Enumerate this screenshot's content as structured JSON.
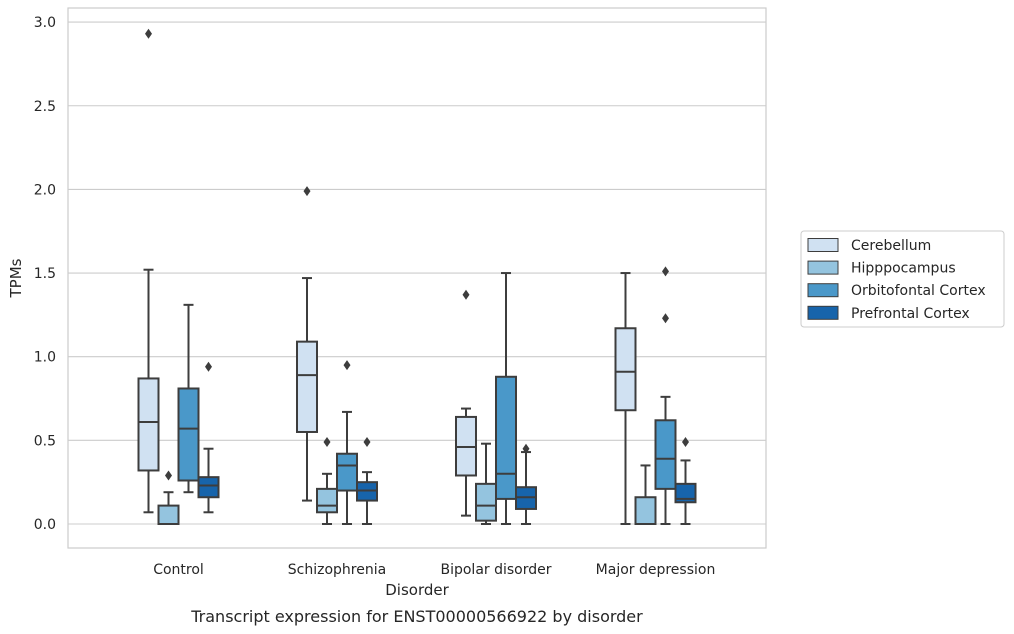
{
  "chart_data": {
    "type": "box",
    "caption": "Transcript expression for ENST00000566922 by disorder",
    "xlabel": "Disorder",
    "ylabel": "TPMs",
    "ylim": [
      -0.14,
      3.08
    ],
    "yticks": [
      0.0,
      0.5,
      1.0,
      1.5,
      2.0,
      2.5,
      3.0
    ],
    "ytick_labels": [
      "0.0",
      "0.5",
      "1.0",
      "1.5",
      "2.0",
      "2.5",
      "3.0"
    ],
    "grid": "horizontal",
    "legend_position": "right",
    "categories": [
      "Control",
      "Schizophrenia",
      "Bipolar disorder",
      "Major depression"
    ],
    "series": [
      {
        "name": "Cerebellum",
        "color": "#d0e1f2",
        "boxes": [
          {
            "min": 0.07,
            "q1": 0.32,
            "median": 0.61,
            "q3": 0.87,
            "max": 1.52,
            "outliers": [
              2.93
            ]
          },
          {
            "min": 0.14,
            "q1": 0.55,
            "median": 0.89,
            "q3": 1.09,
            "max": 1.47,
            "outliers": [
              1.99
            ]
          },
          {
            "min": 0.05,
            "q1": 0.29,
            "median": 0.46,
            "q3": 0.64,
            "max": 0.69,
            "outliers": [
              1.37
            ]
          },
          {
            "min": 0.0,
            "q1": 0.68,
            "median": 0.91,
            "q3": 1.17,
            "max": 1.5,
            "outliers": []
          }
        ]
      },
      {
        "name": "Hipppocampus",
        "color": "#94c4df",
        "boxes": [
          {
            "min": 0.0,
            "q1": 0.0,
            "median": 0.0,
            "q3": 0.11,
            "max": 0.19,
            "outliers": [
              0.29
            ]
          },
          {
            "min": 0.0,
            "q1": 0.07,
            "median": 0.11,
            "q3": 0.21,
            "max": 0.3,
            "outliers": [
              0.49
            ]
          },
          {
            "min": 0.0,
            "q1": 0.02,
            "median": 0.11,
            "q3": 0.24,
            "max": 0.48,
            "outliers": []
          },
          {
            "min": 0.0,
            "q1": 0.0,
            "median": 0.0,
            "q3": 0.16,
            "max": 0.35,
            "outliers": []
          }
        ]
      },
      {
        "name": "Orbitofontal Cortex",
        "color": "#4a98c9",
        "boxes": [
          {
            "min": 0.19,
            "q1": 0.26,
            "median": 0.57,
            "q3": 0.81,
            "max": 1.31,
            "outliers": []
          },
          {
            "min": 0.0,
            "q1": 0.2,
            "median": 0.35,
            "q3": 0.42,
            "max": 0.67,
            "outliers": [
              0.95
            ]
          },
          {
            "min": 0.0,
            "q1": 0.15,
            "median": 0.3,
            "q3": 0.88,
            "max": 1.5,
            "outliers": []
          },
          {
            "min": 0.0,
            "q1": 0.21,
            "median": 0.39,
            "q3": 0.62,
            "max": 0.76,
            "outliers": [
              1.23,
              1.51
            ]
          }
        ]
      },
      {
        "name": "Prefrontal Cortex",
        "color": "#1764ab",
        "boxes": [
          {
            "min": 0.07,
            "q1": 0.16,
            "median": 0.23,
            "q3": 0.28,
            "max": 0.45,
            "outliers": [
              0.94
            ]
          },
          {
            "min": 0.0,
            "q1": 0.14,
            "median": 0.2,
            "q3": 0.25,
            "max": 0.31,
            "outliers": [
              0.49
            ]
          },
          {
            "min": 0.0,
            "q1": 0.09,
            "median": 0.16,
            "q3": 0.22,
            "max": 0.43,
            "outliers": [
              0.45
            ]
          },
          {
            "min": 0.0,
            "q1": 0.13,
            "median": 0.15,
            "q3": 0.24,
            "max": 0.38,
            "outliers": [
              0.49
            ]
          }
        ]
      }
    ]
  }
}
